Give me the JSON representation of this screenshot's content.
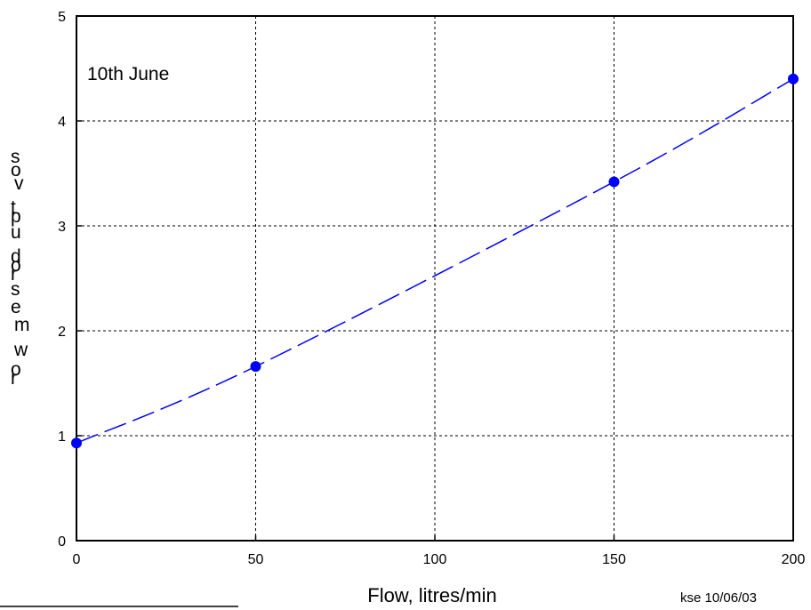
{
  "chart_data": {
    "type": "line",
    "title": "",
    "xlabel": "Flow, litres/min",
    "ylabel": "rowmeasured pot volts",
    "xlim": [
      0,
      200
    ],
    "ylim": [
      0,
      5
    ],
    "x_ticks": [
      0,
      50,
      100,
      150,
      200
    ],
    "y_ticks": [
      0,
      1,
      2,
      3,
      4,
      5
    ],
    "x_tick_labels": [
      "0",
      "50",
      "100",
      "150",
      "200"
    ],
    "y_tick_labels": [
      "0",
      "1",
      "2",
      "3",
      "4",
      "5"
    ],
    "grid": true,
    "series": [
      {
        "points": [
          {
            "x": 0,
            "y": 0.93
          },
          {
            "x": 50,
            "y": 1.66
          },
          {
            "x": 150,
            "y": 3.42
          },
          {
            "x": 200,
            "y": 4.4
          }
        ],
        "color": "#0000ff",
        "line_style": "dashed",
        "marker": "circle"
      }
    ],
    "annotations": [
      "10th June",
      "kse 10/06/03"
    ]
  }
}
